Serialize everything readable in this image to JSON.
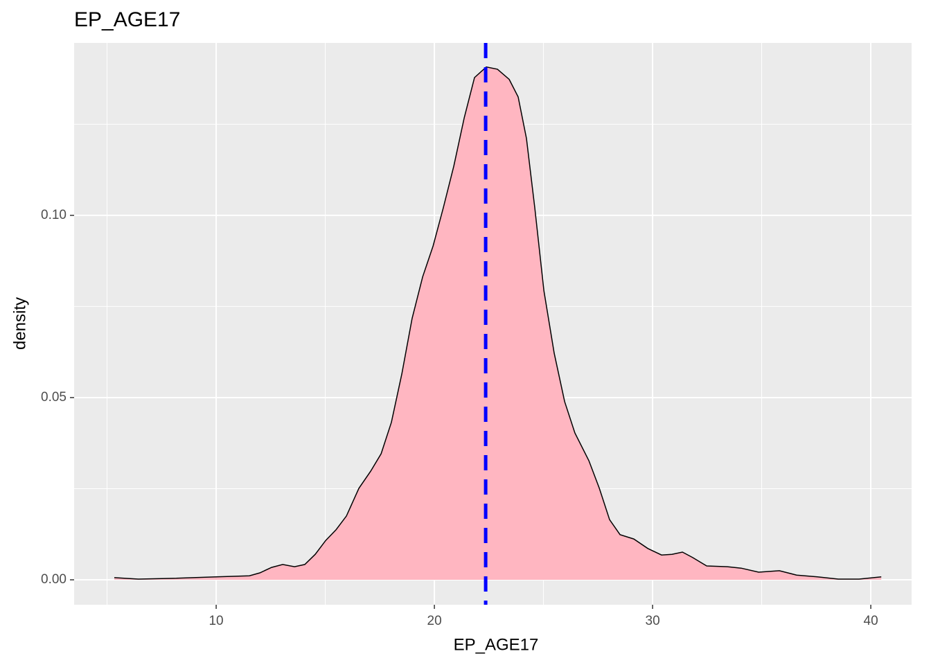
{
  "chart_data": {
    "type": "density",
    "title": "EP_AGE17",
    "x_label": "EP_AGE17",
    "y_label": "density",
    "x": [
      5.33,
      6.44,
      8.03,
      10,
      11.52,
      12,
      12.54,
      13.05,
      13.59,
      14.06,
      14.54,
      15.02,
      15.49,
      15.97,
      16.54,
      17.08,
      17.56,
      18.03,
      18.51,
      18.98,
      19.46,
      19.94,
      20.41,
      20.89,
      21.37,
      21.84,
      22.38,
      22.89,
      23.43,
      23.84,
      24.22,
      24.6,
      25.02,
      25.49,
      25.97,
      26.44,
      27.08,
      27.56,
      28.03,
      28.51,
      29.14,
      29.78,
      30.41,
      30.89,
      31.37,
      31.84,
      32.48,
      33.43,
      34.06,
      34.86,
      35.81,
      36.6,
      37.56,
      38.51,
      39.46,
      40.48
    ],
    "values": [
      0.0006,
      0.0002,
      0.0004,
      0.0008,
      0.0011,
      0.0019,
      0.0034,
      0.0042,
      0.0036,
      0.0042,
      0.007,
      0.0108,
      0.0137,
      0.0175,
      0.0251,
      0.0298,
      0.0346,
      0.0432,
      0.0565,
      0.0717,
      0.0831,
      0.0916,
      0.1021,
      0.1135,
      0.1268,
      0.1378,
      0.1407,
      0.1401,
      0.1373,
      0.1325,
      0.1211,
      0.1021,
      0.0793,
      0.0622,
      0.0489,
      0.0403,
      0.0327,
      0.0251,
      0.0165,
      0.0124,
      0.0112,
      0.0086,
      0.0068,
      0.007,
      0.0076,
      0.0061,
      0.0038,
      0.0036,
      0.0032,
      0.0021,
      0.0025,
      0.0013,
      0.0008,
      0.0002,
      0.0002,
      0.0008
    ],
    "fill": "#ffb6c1",
    "line_color": "#000000",
    "vline": {
      "x": 22.35,
      "color": "#0000ff"
    },
    "xlim": [
      3.49,
      41.87
    ],
    "ylim": [
      -0.00684,
      0.1473
    ],
    "xticks": [
      10,
      20,
      30,
      40
    ],
    "yticks": [
      {
        "value": 0,
        "label": "0.00"
      },
      {
        "value": 0.05,
        "label": "0.05"
      },
      {
        "value": 0.1,
        "label": "0.10"
      }
    ],
    "xminor": [
      5,
      15,
      25,
      35
    ],
    "yminor": [
      0.025,
      0.075,
      0.125
    ],
    "grid": true
  }
}
